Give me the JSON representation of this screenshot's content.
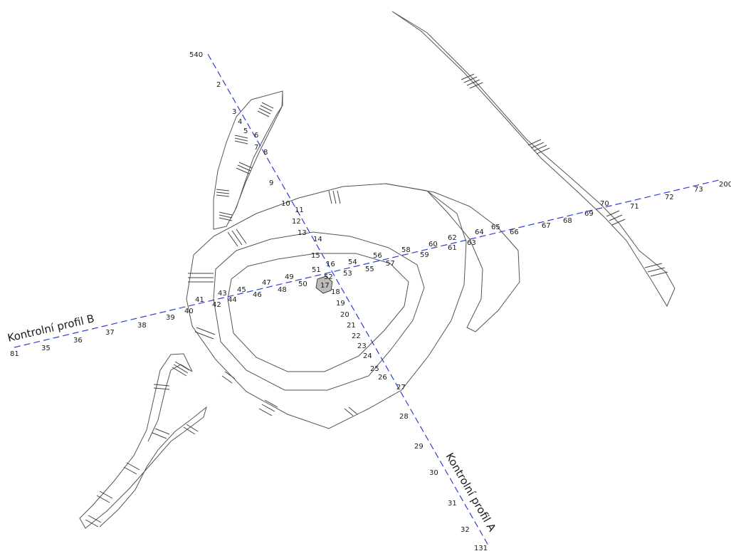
{
  "profiles": {
    "a": {
      "title": "Kontrolní profil A",
      "start_label": "540",
      "end_label": "131"
    },
    "b": {
      "title": "Kontrolní profil B",
      "start_label": "81",
      "end_label": "200"
    }
  },
  "points_a": [
    "2",
    "3",
    "4",
    "5",
    "6",
    "7",
    "8",
    "9",
    "10",
    "11",
    "12",
    "13",
    "14",
    "15",
    "16",
    "17",
    "18",
    "19",
    "20",
    "21",
    "22",
    "23",
    "24",
    "25",
    "26",
    "27",
    "28",
    "29",
    "30",
    "31",
    "32"
  ],
  "points_b": [
    "35",
    "36",
    "37",
    "38",
    "39",
    "40",
    "41",
    "42",
    "43",
    "44",
    "45",
    "46",
    "47",
    "48",
    "49",
    "50",
    "51",
    "52",
    "53",
    "54",
    "55",
    "56",
    "57",
    "58",
    "59",
    "60",
    "61",
    "62",
    "63",
    "64",
    "65",
    "66",
    "67",
    "68",
    "69",
    "70",
    "71",
    "72",
    "73"
  ],
  "colors": {
    "profile_line": "#2a3fd6",
    "outline": "#555555"
  }
}
